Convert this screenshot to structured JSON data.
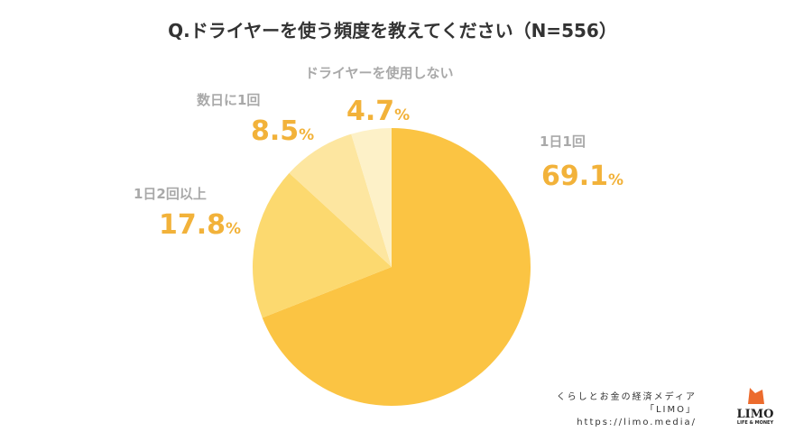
{
  "chart_data": {
    "type": "pie",
    "title": "Q.ドライヤーを使う頻度を教えてください（N=556）",
    "start": "top",
    "direction": "clockwise",
    "slices": [
      {
        "label": "1日1回",
        "value": 69.1,
        "color": "#fbc443"
      },
      {
        "label": "1日2回以上",
        "value": 17.8,
        "color": "#fcd96f"
      },
      {
        "label": "数日に1回",
        "value": 8.5,
        "color": "#fde6a0"
      },
      {
        "label": "ドライヤーを使用しない",
        "value": 4.7,
        "color": "#fdf1c8"
      }
    ],
    "value_suffix": "%"
  },
  "credit": {
    "line1": "くらしとお金の経済メディア",
    "line2": "「LIMO」",
    "url": "https://limo.media/"
  },
  "logo": {
    "text": "LIMO",
    "sub": "LIFE & MONEY"
  }
}
